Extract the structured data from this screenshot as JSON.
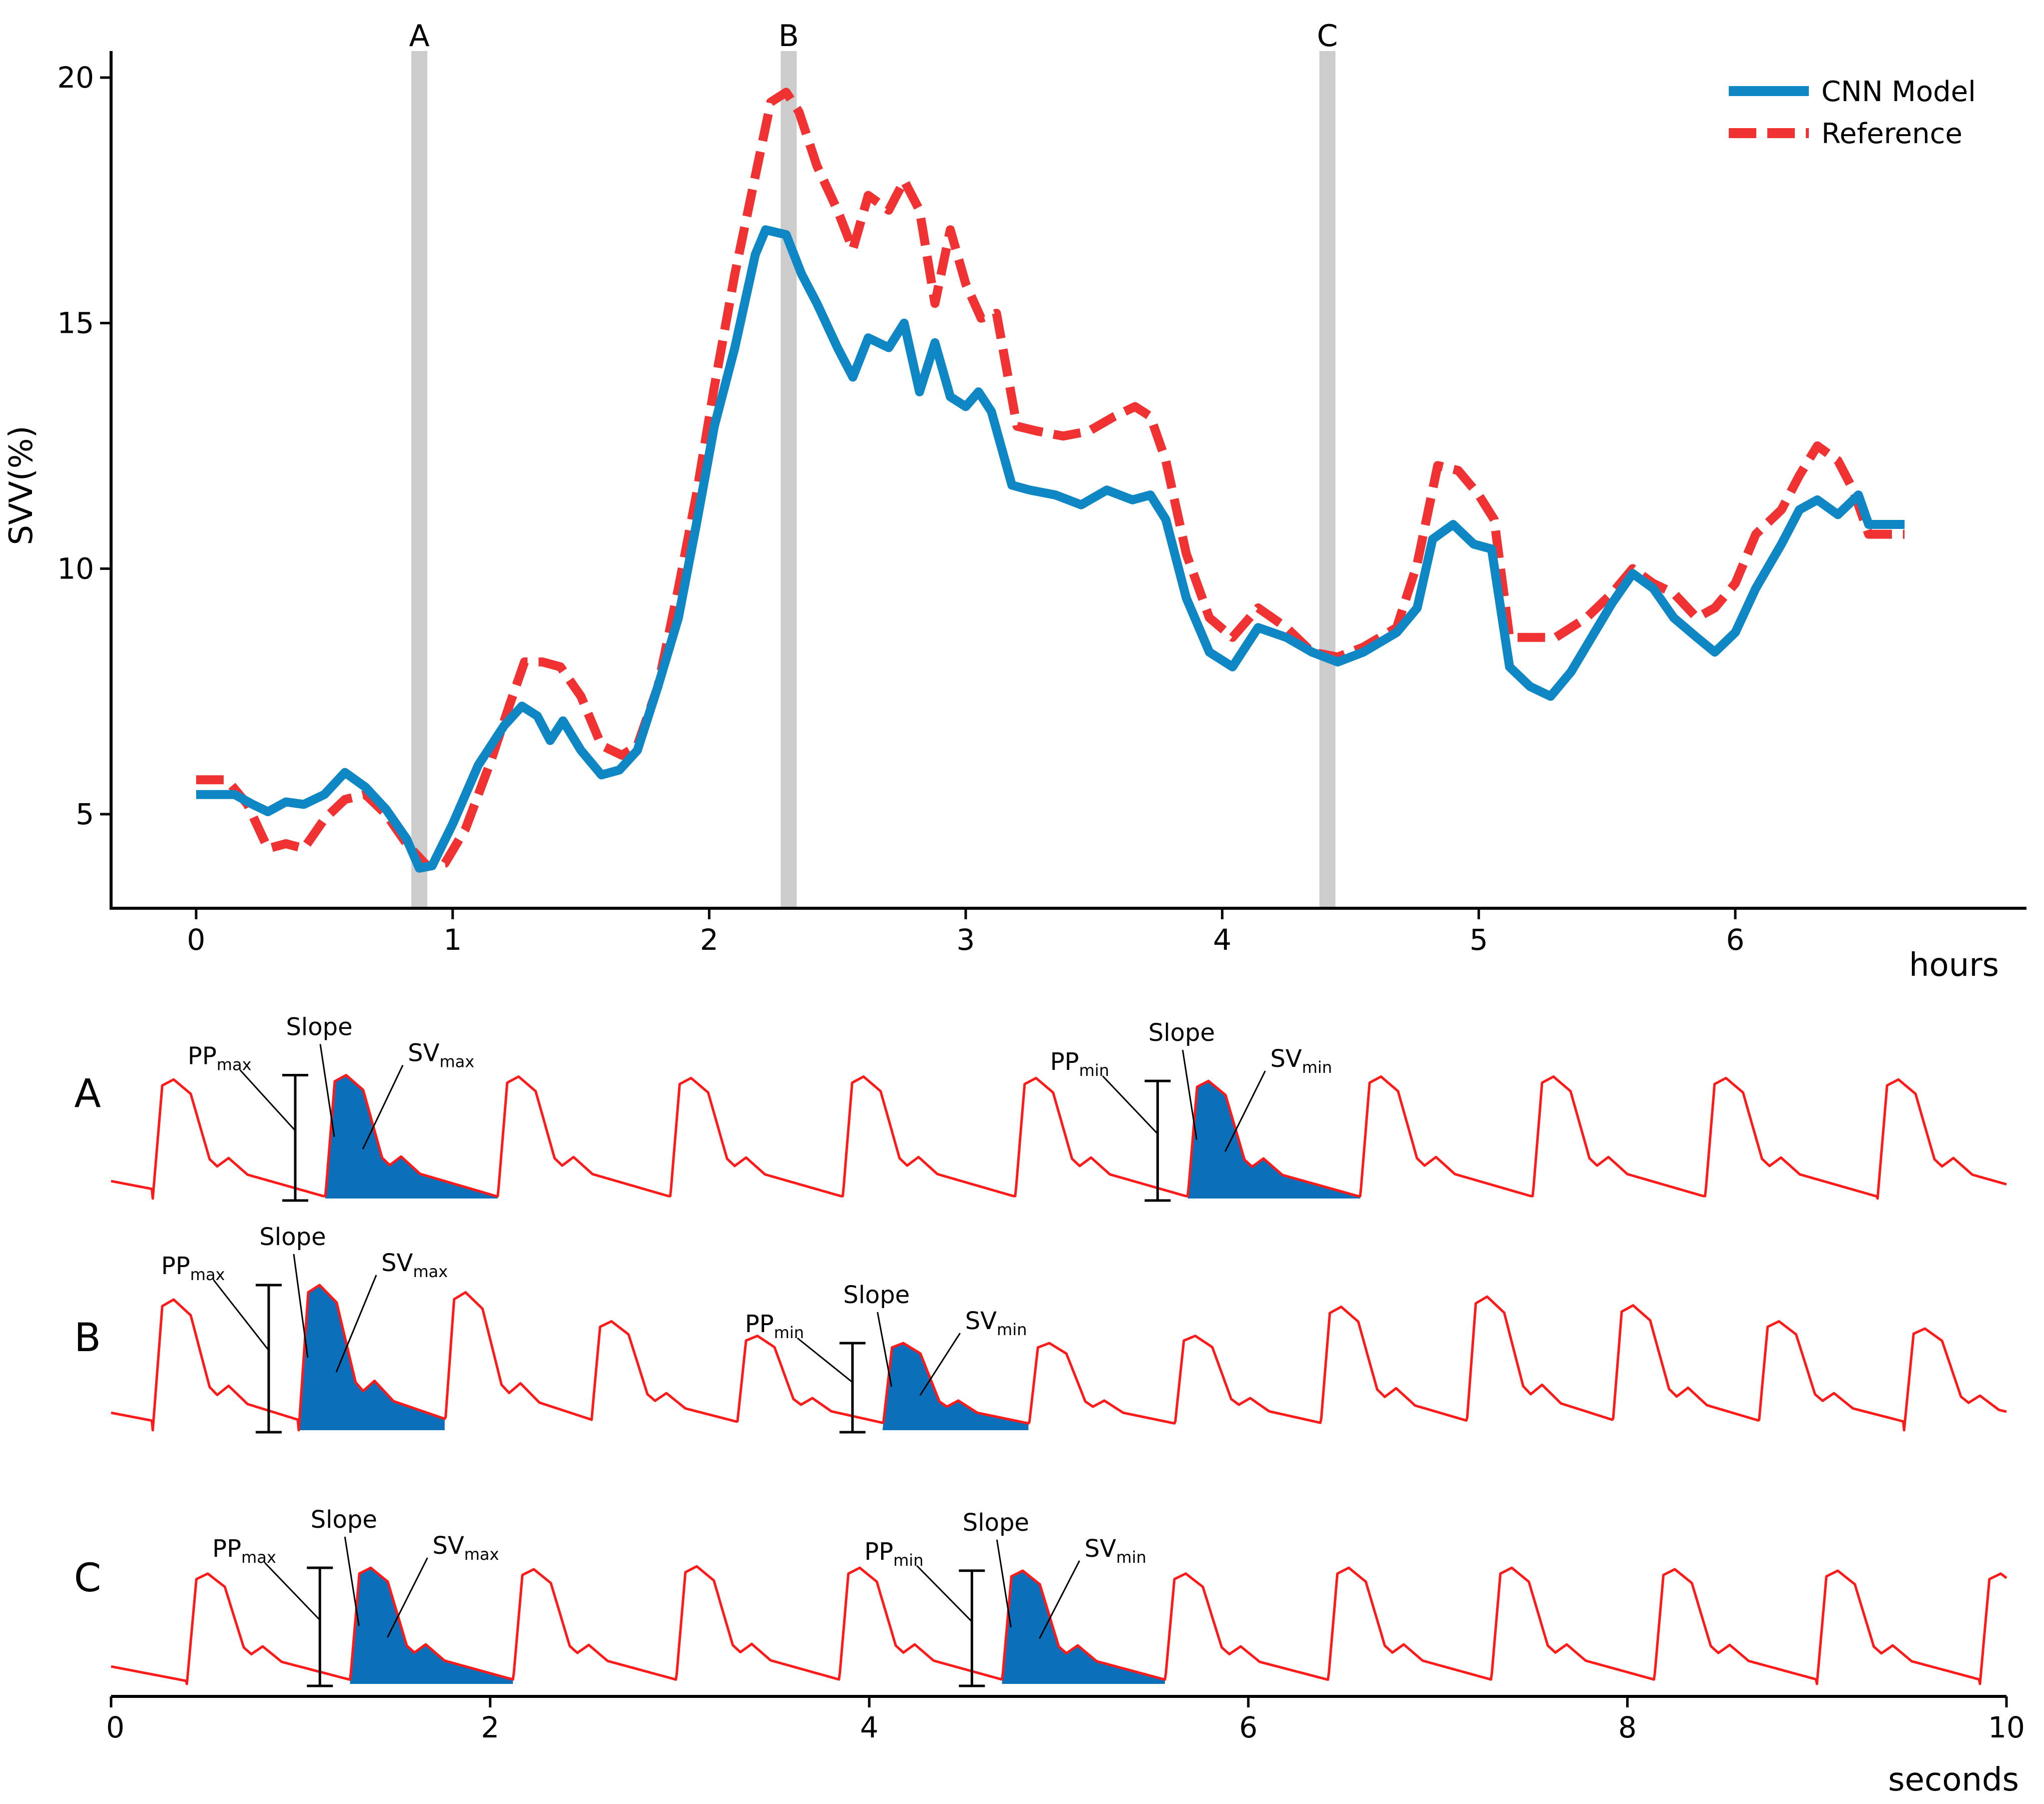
{
  "chart_data": [
    {
      "type": "line",
      "title": "",
      "xlabel": "hours",
      "ylabel": "SVV(%)",
      "xlim": [
        -0.33,
        7.05
      ],
      "ylim": [
        3.3,
        20.6
      ],
      "xticks": [
        0,
        1,
        2,
        3,
        4,
        5,
        6
      ],
      "xtick_labels": [
        "0",
        "1",
        "2",
        "3",
        "4",
        "5",
        "6"
      ],
      "yticks": [
        5,
        10,
        15,
        20
      ],
      "ytick_labels": [
        "5",
        "10",
        "15",
        "20"
      ],
      "grid": false,
      "legend_position": "top-right",
      "markers": [
        {
          "label": "A",
          "x": 0.87
        },
        {
          "label": "B",
          "x": 2.31
        },
        {
          "label": "C",
          "x": 4.41
        }
      ],
      "series": [
        {
          "name": "CNN Model",
          "color": "#0f87c4",
          "style": "solid",
          "x": [
            0,
            0.15,
            0.22,
            0.28,
            0.35,
            0.42,
            0.5,
            0.58,
            0.66,
            0.74,
            0.82,
            0.87,
            0.92,
            1.0,
            1.1,
            1.2,
            1.27,
            1.33,
            1.38,
            1.43,
            1.5,
            1.58,
            1.65,
            1.72,
            1.8,
            1.88,
            1.95,
            2.02,
            2.1,
            2.18,
            2.22,
            2.3,
            2.36,
            2.42,
            2.5,
            2.56,
            2.62,
            2.7,
            2.76,
            2.82,
            2.88,
            2.94,
            3.0,
            3.05,
            3.1,
            3.18,
            3.25,
            3.35,
            3.45,
            3.55,
            3.65,
            3.72,
            3.78,
            3.86,
            3.95,
            4.04,
            4.14,
            4.25,
            4.35,
            4.45,
            4.55,
            4.68,
            4.76,
            4.82,
            4.9,
            4.98,
            5.05,
            5.12,
            5.2,
            5.28,
            5.36,
            5.44,
            5.52,
            5.6,
            5.68,
            5.76,
            5.85,
            5.92,
            6.0,
            6.08,
            6.18,
            6.25,
            6.32,
            6.4,
            6.48,
            6.52,
            6.66
          ],
          "y": [
            5.4,
            5.4,
            5.2,
            5.05,
            5.25,
            5.2,
            5.4,
            5.85,
            5.55,
            5.1,
            4.5,
            3.9,
            3.95,
            4.8,
            6.0,
            6.8,
            7.2,
            7.0,
            6.5,
            6.9,
            6.3,
            5.8,
            5.9,
            6.3,
            7.6,
            9.0,
            10.9,
            12.9,
            14.5,
            16.4,
            16.9,
            16.8,
            16.0,
            15.4,
            14.5,
            13.9,
            14.7,
            14.5,
            15.0,
            13.6,
            14.6,
            13.5,
            13.3,
            13.6,
            13.2,
            11.7,
            11.6,
            11.5,
            11.3,
            11.6,
            11.4,
            11.5,
            11.0,
            9.4,
            8.3,
            8.0,
            8.8,
            8.6,
            8.3,
            8.1,
            8.3,
            8.7,
            9.2,
            10.6,
            10.9,
            10.5,
            10.4,
            8.0,
            7.6,
            7.4,
            7.9,
            8.6,
            9.3,
            9.9,
            9.6,
            9.0,
            8.6,
            8.3,
            8.7,
            9.6,
            10.5,
            11.2,
            11.4,
            11.1,
            11.5,
            10.9,
            10.9
          ]
        },
        {
          "name": "Reference",
          "color": "#f03232",
          "style": "dashed",
          "x": [
            0,
            0.12,
            0.2,
            0.28,
            0.35,
            0.42,
            0.5,
            0.58,
            0.66,
            0.74,
            0.82,
            0.9,
            0.97,
            1.05,
            1.15,
            1.22,
            1.28,
            1.35,
            1.42,
            1.5,
            1.58,
            1.66,
            1.72,
            1.8,
            1.88,
            1.95,
            2.02,
            2.1,
            2.18,
            2.24,
            2.3,
            2.35,
            2.42,
            2.5,
            2.56,
            2.62,
            2.7,
            2.76,
            2.82,
            2.88,
            2.94,
            3.0,
            3.06,
            3.12,
            3.2,
            3.28,
            3.38,
            3.48,
            3.58,
            3.66,
            3.72,
            3.78,
            3.86,
            3.95,
            4.04,
            4.14,
            4.25,
            4.35,
            4.45,
            4.55,
            4.68,
            4.76,
            4.84,
            4.92,
            5.0,
            5.06,
            5.12,
            5.2,
            5.3,
            5.42,
            5.52,
            5.6,
            5.68,
            5.76,
            5.85,
            5.92,
            6.0,
            6.08,
            6.18,
            6.25,
            6.32,
            6.4,
            6.46,
            6.52,
            6.66
          ],
          "y": [
            5.7,
            5.7,
            5.2,
            4.3,
            4.4,
            4.3,
            4.9,
            5.3,
            5.4,
            5.0,
            4.4,
            3.95,
            4.0,
            4.7,
            6.1,
            7.2,
            8.1,
            8.1,
            8.0,
            7.4,
            6.4,
            6.2,
            6.4,
            7.6,
            9.6,
            11.5,
            13.7,
            16.0,
            18.0,
            19.5,
            19.7,
            19.3,
            18.2,
            17.3,
            16.5,
            17.6,
            17.3,
            17.9,
            17.3,
            15.4,
            16.9,
            15.8,
            15.1,
            15.2,
            12.9,
            12.8,
            12.7,
            12.8,
            13.1,
            13.3,
            13.1,
            12.2,
            10.3,
            9.0,
            8.6,
            9.2,
            8.8,
            8.3,
            8.2,
            8.4,
            8.8,
            10.1,
            12.1,
            12.0,
            11.5,
            11.0,
            8.6,
            8.6,
            8.6,
            9.0,
            9.5,
            10.0,
            9.7,
            9.5,
            9.0,
            9.2,
            9.7,
            10.7,
            11.2,
            11.9,
            12.5,
            12.2,
            11.6,
            10.7,
            10.7
          ]
        }
      ],
      "legend": [
        "CNN Model",
        "Reference"
      ]
    },
    {
      "type": "line",
      "title": "",
      "xlabel": "seconds",
      "ylabel": "",
      "xlim": [
        0,
        10
      ],
      "xticks": [
        0,
        2,
        4,
        6,
        8,
        10
      ],
      "xtick_labels": [
        "0",
        "2",
        "4",
        "6",
        "8",
        "10"
      ],
      "grid": false,
      "wave_color": "#ff1a1a",
      "fill_color": "#0b6fb9",
      "series": [
        {
          "name": "A",
          "beat_onsets_s": [
            0.22,
            1.13,
            2.04,
            2.95,
            3.86,
            4.77,
            5.68,
            6.59,
            7.5,
            8.41,
            9.32
          ],
          "beat_amplitude": [
            0.82,
            0.85,
            0.84,
            0.83,
            0.84,
            0.83,
            0.81,
            0.84,
            0.84,
            0.83,
            0.82
          ],
          "highlighted_beats": [
            1,
            6
          ],
          "annotations": [
            {
              "slope": "Slope",
              "pp": "PP",
              "pp_sub": "max",
              "sv": "SV",
              "sv_sub": "max"
            },
            {
              "slope": "Slope",
              "pp": "PP",
              "pp_sub": "min",
              "sv": "SV",
              "sv_sub": "min"
            }
          ]
        },
        {
          "name": "B",
          "beat_onsets_s": [
            0.22,
            0.99,
            1.76,
            2.53,
            3.3,
            4.07,
            4.84,
            5.61,
            6.38,
            7.15,
            7.92,
            8.69,
            9.46
          ],
          "beat_amplitude": [
            0.9,
            1.0,
            0.95,
            0.75,
            0.65,
            0.6,
            0.6,
            0.65,
            0.85,
            0.92,
            0.86,
            0.75,
            0.7
          ],
          "highlighted_beats": [
            1,
            5
          ],
          "annotations": [
            {
              "slope": "Slope",
              "pp": "PP",
              "pp_sub": "max",
              "sv": "SV",
              "sv_sub": "max"
            },
            {
              "slope": "Slope",
              "pp": "PP",
              "pp_sub": "min",
              "sv": "SV",
              "sv_sub": "min"
            }
          ]
        },
        {
          "name": "C",
          "beat_onsets_s": [
            0.4,
            1.26,
            2.12,
            2.98,
            3.84,
            4.7,
            5.56,
            6.42,
            7.28,
            8.14,
            9.0,
            9.86
          ],
          "beat_amplitude": [
            0.76,
            0.8,
            0.79,
            0.81,
            0.8,
            0.78,
            0.76,
            0.8,
            0.8,
            0.79,
            0.78,
            0.76
          ],
          "highlighted_beats": [
            1,
            5
          ],
          "annotations": [
            {
              "slope": "Slope",
              "pp": "PP",
              "pp_sub": "max",
              "sv": "SV",
              "sv_sub": "max"
            },
            {
              "slope": "Slope",
              "pp": "PP",
              "pp_sub": "min",
              "sv": "SV",
              "sv_sub": "min"
            }
          ]
        }
      ]
    }
  ]
}
